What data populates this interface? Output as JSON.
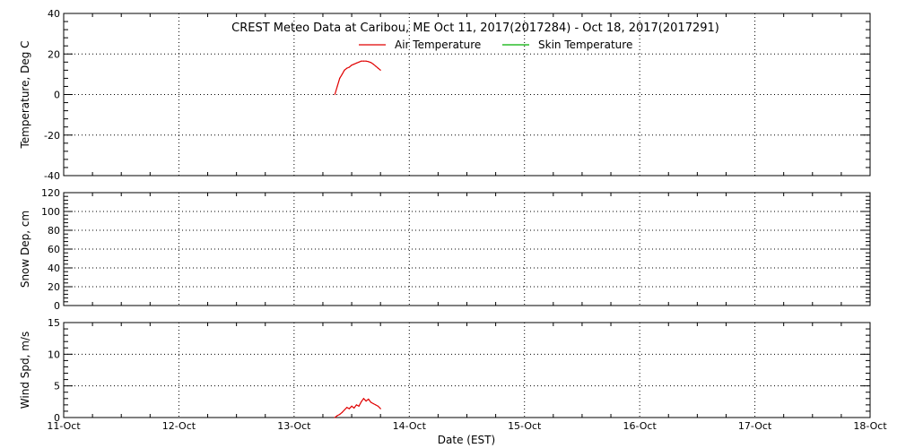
{
  "title": "CREST Meteo Data at Caribou, ME   Oct 11, 2017(2017284) - Oct 18, 2017(2017291)",
  "xlabel": "Date (EST)",
  "x_ticks": [
    "11-Oct",
    "12-Oct",
    "13-Oct",
    "14-Oct",
    "15-Oct",
    "16-Oct",
    "17-Oct",
    "18-Oct"
  ],
  "legend": [
    {
      "name": "Air Temperature",
      "color": "#e00000"
    },
    {
      "name": "Skin Temperature",
      "color": "#00b000"
    }
  ],
  "chart_data": [
    {
      "type": "line",
      "ylabel": "Temperature, Deg C",
      "xlim": [
        "2017-10-11",
        "2017-10-18"
      ],
      "ylim": [
        -40,
        40
      ],
      "y_ticks": [
        -40,
        -20,
        0,
        20,
        40
      ],
      "grid": true,
      "legend_position": "top-center",
      "series": [
        {
          "name": "Air Temperature",
          "color": "#e00000",
          "x": [
            "2017-10-13 08:30",
            "2017-10-13 09:00",
            "2017-10-13 09:30",
            "2017-10-13 10:00",
            "2017-10-13 10:30",
            "2017-10-13 11:00",
            "2017-10-13 11:30",
            "2017-10-13 12:00",
            "2017-10-13 12:30",
            "2017-10-13 13:00",
            "2017-10-13 13:30",
            "2017-10-13 14:00",
            "2017-10-13 14:30",
            "2017-10-13 15:00",
            "2017-10-13 15:30",
            "2017-10-13 16:00",
            "2017-10-13 16:30",
            "2017-10-13 17:00",
            "2017-10-13 17:30",
            "2017-10-13 18:00"
          ],
          "values": [
            0,
            4,
            8,
            10,
            12,
            13,
            13.5,
            14.5,
            15,
            15.5,
            16,
            16.5,
            16.5,
            16.5,
            16.2,
            15.8,
            15,
            14,
            13,
            12
          ]
        },
        {
          "name": "Skin Temperature",
          "color": "#00b000",
          "x": [],
          "values": []
        }
      ]
    },
    {
      "type": "line",
      "ylabel": "Snow Dep, cm",
      "xlim": [
        "2017-10-11",
        "2017-10-18"
      ],
      "ylim": [
        0,
        120
      ],
      "y_ticks": [
        0,
        20,
        40,
        60,
        80,
        100,
        120
      ],
      "grid": true,
      "series": []
    },
    {
      "type": "line",
      "ylabel": "Wind Spd, m/s",
      "xlim": [
        "2017-10-11",
        "2017-10-18"
      ],
      "ylim": [
        0,
        15
      ],
      "y_ticks": [
        0,
        5,
        10,
        15
      ],
      "grid": true,
      "series": [
        {
          "color": "#e00000",
          "x": [
            "2017-10-13 08:30",
            "2017-10-13 09:00",
            "2017-10-13 09:30",
            "2017-10-13 10:00",
            "2017-10-13 10:30",
            "2017-10-13 11:00",
            "2017-10-13 11:30",
            "2017-10-13 12:00",
            "2017-10-13 12:30",
            "2017-10-13 13:00",
            "2017-10-13 13:30",
            "2017-10-13 14:00",
            "2017-10-13 14:30",
            "2017-10-13 15:00",
            "2017-10-13 15:30",
            "2017-10-13 16:00",
            "2017-10-13 16:30",
            "2017-10-13 17:00",
            "2017-10-13 17:30",
            "2017-10-13 18:00"
          ],
          "values": [
            0,
            0.3,
            0.5,
            0.8,
            1.2,
            1.6,
            1.4,
            1.8,
            1.5,
            2.0,
            1.8,
            2.5,
            3.0,
            2.6,
            2.9,
            2.4,
            2.2,
            2.0,
            1.8,
            1.4
          ]
        }
      ]
    }
  ]
}
